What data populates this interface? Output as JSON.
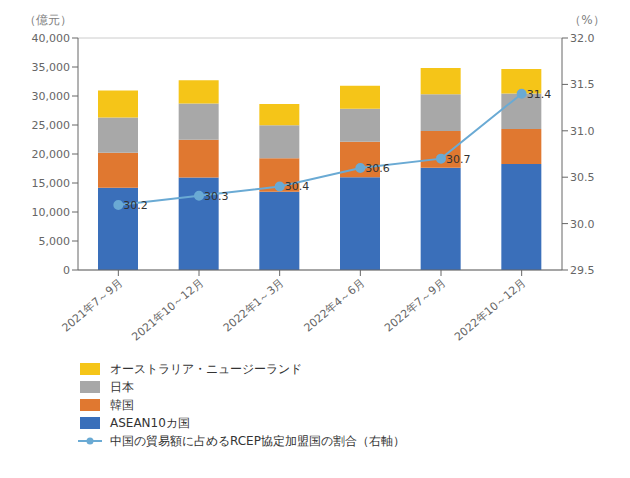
{
  "chart_data": {
    "type": "bar",
    "stacked": true,
    "categories": [
      "2021年7～9月",
      "2021年10～12月",
      "2022年1～3月",
      "2022年4～6月",
      "2022年7～9月",
      "2022年10～12月"
    ],
    "series": [
      {
        "name": "ASEAN10カ国",
        "color": "#3a6fba",
        "values": [
          14173,
          15937,
          13506,
          15998,
          17646,
          18263
        ]
      },
      {
        "name": "韓国",
        "color": "#e07830",
        "values": [
          6047,
          6524,
          5745,
          6125,
          6322,
          6057
        ]
      },
      {
        "name": "日本",
        "color": "#a8a8a8",
        "values": [
          6061,
          6228,
          5708,
          5699,
          6342,
          6115
        ]
      },
      {
        "name": "オーストラリア・ニュージーランド",
        "color": "#f5c518",
        "values": [
          4647,
          4047,
          3646,
          3942,
          4520,
          4213
        ]
      },
      {
        "name": "中国の貿易額に占めるRCEP協定加盟国の割合（右軸）",
        "type": "line",
        "axis": "y2",
        "color": "#6aaad4",
        "marker": "circle",
        "data_labels": true,
        "values": [
          30.2,
          30.3,
          30.4,
          30.6,
          30.7,
          31.4
        ]
      }
    ],
    "ylabel": "（億元）",
    "y2label": "（%）",
    "ylim": [
      0,
      40000
    ],
    "yticks": [
      0,
      {
        "value": 5000,
        "label": "5,000"
      },
      {
        "value": 10000,
        "label": "10,000"
      },
      {
        "value": 15000,
        "label": "15,000"
      },
      {
        "value": 20000,
        "label": "20,000"
      },
      {
        "value": 25000,
        "label": "25,000"
      },
      {
        "value": 30000,
        "label": "30,000"
      },
      {
        "value": 35000,
        "label": "35,000"
      },
      {
        "value": 40000,
        "label": "40,000"
      }
    ],
    "y2lim": [
      29.5,
      32.0
    ],
    "y2ticks": [
      29.5,
      {
        "value": 30.0,
        "label": "30.0"
      },
      30.5,
      {
        "value": 31.0,
        "label": "31.0"
      },
      31.5,
      {
        "value": 32.0,
        "label": "32.0"
      }
    ],
    "grid": true,
    "legend": "bottom"
  }
}
